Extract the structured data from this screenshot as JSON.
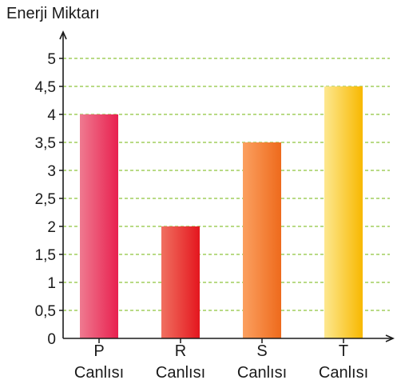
{
  "chart_data": {
    "type": "bar",
    "ylabel": "Enerji Miktarı",
    "xlabel": "",
    "title": "",
    "categories": [
      [
        "P",
        "Canlısı"
      ],
      [
        "R",
        "Canlısı"
      ],
      [
        "S",
        "Canlısı"
      ],
      [
        "T",
        "Canlısı"
      ]
    ],
    "values": [
      4,
      2,
      3.5,
      4.5
    ],
    "ylim": [
      0,
      5
    ],
    "yticks": [
      "0",
      "0,5",
      "1",
      "1,5",
      "2",
      "2,5",
      "3",
      "3,5",
      "4",
      "4,5",
      "5"
    ],
    "grid": true,
    "bar_colors": [
      [
        "#ef7a90",
        "#e8204f"
      ],
      [
        "#f07060",
        "#e4161e"
      ],
      [
        "#fba060",
        "#ee6a1c"
      ],
      [
        "#fde890",
        "#f8b800"
      ]
    ],
    "grid_color": "#8fc43c",
    "axis_color": "#1a1a1a"
  }
}
